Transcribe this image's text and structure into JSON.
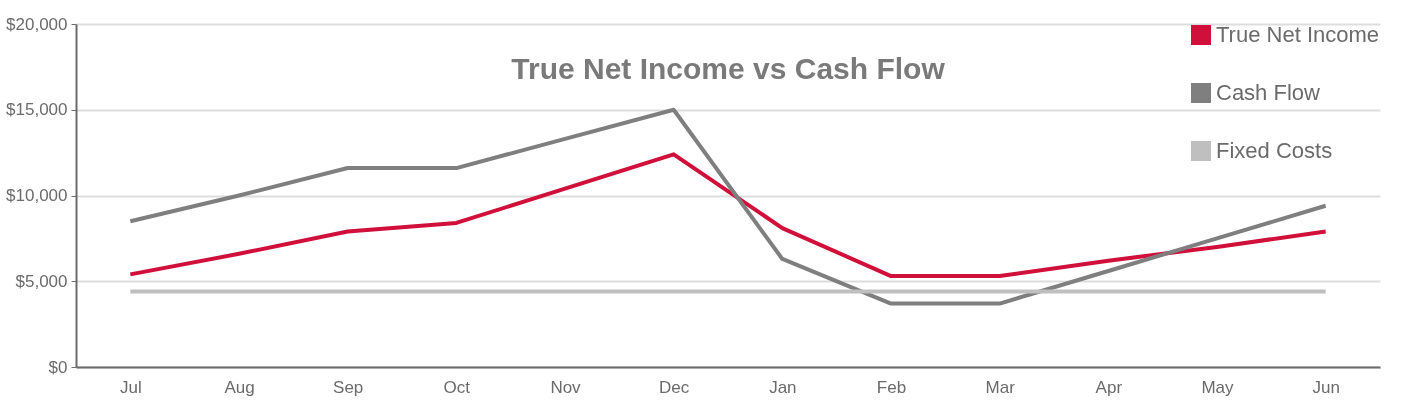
{
  "chart_data": {
    "type": "line",
    "title": "True Net Income vs Cash Flow",
    "categories": [
      "Jul",
      "Aug",
      "Sep",
      "Oct",
      "Nov",
      "Dec",
      "Jan",
      "Feb",
      "Mar",
      "Apr",
      "May",
      "Jun"
    ],
    "series": [
      {
        "name": "True Net Income",
        "color": "#d0103a",
        "values": [
          5400,
          6600,
          7900,
          8400,
          10400,
          12400,
          8100,
          5300,
          5300,
          6200,
          7000,
          7900
        ]
      },
      {
        "name": "Cash Flow",
        "color": "#7f7f7f",
        "values": [
          8500,
          10000,
          11600,
          11600,
          13300,
          15000,
          6300,
          3700,
          3700,
          5600,
          7500,
          9400
        ]
      },
      {
        "name": "Fixed Costs",
        "color": "#bfbfbf",
        "values": [
          4400,
          4400,
          4400,
          4400,
          4400,
          4400,
          4400,
          4400,
          4400,
          4400,
          4400,
          4400
        ]
      }
    ],
    "ylim": [
      0,
      20000
    ],
    "yticks": [
      {
        "value": 0,
        "label": "$0"
      },
      {
        "value": 5000,
        "label": "$5,000"
      },
      {
        "value": 10000,
        "label": "$10,000"
      },
      {
        "value": 15000,
        "label": "$15,000"
      },
      {
        "value": 20000,
        "label": "$20,000"
      }
    ],
    "grid": "y",
    "legend": "top right",
    "marker": "none",
    "line_style": "solid"
  }
}
